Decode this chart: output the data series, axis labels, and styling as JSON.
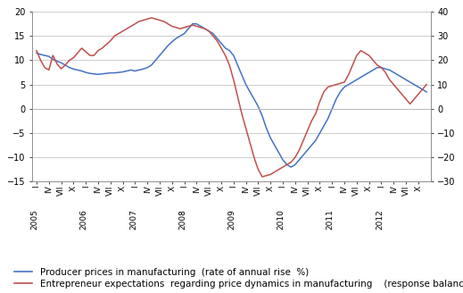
{
  "blue_label": "Producer prices in manufacturing  (rate of annual rise  %)",
  "red_label": "Entrepreneur expectations  regarding price dynamics in manufacturing    (response balance; right axis)",
  "ylim_left": [
    -15,
    20
  ],
  "ylim_right": [
    -30,
    40
  ],
  "yticks_left": [
    -15,
    -10,
    -5,
    0,
    5,
    10,
    15,
    20
  ],
  "yticks_right": [
    -30,
    -20,
    -10,
    0,
    10,
    20,
    30,
    40
  ],
  "blue_color": "#4472C4",
  "red_color": "#C0504D",
  "grid_color": "#BBBBBB",
  "background_color": "#FFFFFF",
  "tick_label_fontsize": 7.0,
  "legend_fontsize": 7.5,
  "blue_monthly": [
    11.5,
    11.2,
    11.0,
    10.8,
    10.2,
    9.8,
    9.5,
    9.0,
    8.5,
    8.2,
    8.0,
    7.8,
    7.5,
    7.3,
    7.2,
    7.1,
    7.2,
    7.3,
    7.4,
    7.4,
    7.5,
    7.6,
    7.8,
    8.0,
    7.8,
    8.0,
    8.2,
    8.5,
    9.0,
    10.0,
    11.0,
    12.0,
    13.0,
    13.8,
    14.5,
    15.0,
    15.5,
    16.5,
    17.5,
    17.5,
    17.0,
    16.5,
    16.0,
    15.5,
    14.5,
    13.5,
    12.5,
    12.0,
    11.0,
    9.0,
    7.0,
    5.0,
    3.5,
    2.0,
    0.5,
    -1.5,
    -4.0,
    -6.0,
    -7.5,
    -9.0,
    -10.5,
    -11.5,
    -12.0,
    -11.5,
    -10.5,
    -9.5,
    -8.5,
    -7.5,
    -6.5,
    -5.0,
    -3.5,
    -2.0,
    0.0,
    2.0,
    3.5,
    4.5,
    5.0,
    5.5,
    6.0,
    6.5,
    7.0,
    7.5,
    8.0,
    8.5,
    8.5,
    8.2,
    8.0,
    7.5,
    7.0,
    6.5,
    6.0,
    5.5,
    5.0,
    4.5,
    4.0,
    3.5
  ],
  "red_monthly": [
    24.0,
    20.0,
    17.0,
    16.0,
    22.0,
    18.5,
    16.5,
    18.0,
    20.0,
    21.0,
    23.0,
    25.0,
    23.5,
    22.0,
    22.0,
    24.0,
    25.0,
    26.5,
    28.0,
    30.0,
    31.0,
    32.0,
    33.0,
    34.0,
    35.0,
    36.0,
    36.5,
    37.0,
    37.5,
    37.0,
    36.5,
    36.0,
    35.0,
    34.0,
    33.5,
    33.0,
    33.5,
    34.0,
    34.5,
    34.0,
    33.5,
    33.0,
    32.0,
    30.0,
    28.0,
    25.0,
    22.0,
    18.0,
    12.0,
    5.0,
    -2.0,
    -8.0,
    -14.0,
    -20.0,
    -25.0,
    -28.0,
    -27.5,
    -27.0,
    -26.0,
    -25.0,
    -24.0,
    -23.0,
    -22.0,
    -20.0,
    -17.0,
    -13.0,
    -9.0,
    -5.0,
    -2.0,
    3.0,
    7.0,
    9.0,
    9.5,
    10.0,
    10.5,
    11.0,
    14.0,
    18.0,
    22.0,
    24.0,
    23.0,
    22.0,
    20.0,
    18.0,
    17.0,
    15.0,
    12.0,
    10.0,
    8.0,
    6.0,
    4.0,
    2.0,
    4.0,
    6.0,
    8.0,
    10.0
  ]
}
